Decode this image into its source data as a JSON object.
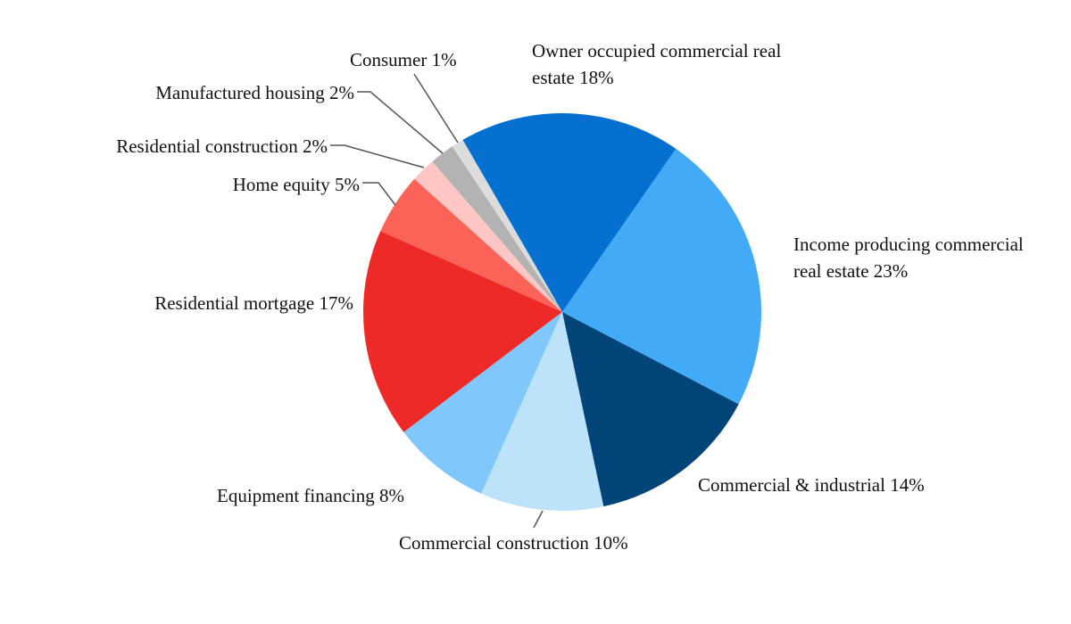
{
  "chart_data": {
    "type": "pie",
    "categories": [
      "Owner occupied commercial real estate",
      "Income producing commercial real estate",
      "Commercial & industrial",
      "Commercial construction",
      "Equipment financing",
      "Residential mortgage",
      "Home equity",
      "Residential construction",
      "Manufactured housing",
      "Consumer"
    ],
    "values": [
      18,
      23,
      14,
      10,
      8,
      17,
      5,
      2,
      2,
      1
    ],
    "value_labels": [
      "18%",
      "23%",
      "14%",
      "10%",
      "8%",
      "17%",
      "5%",
      "2%",
      "2%",
      "1%"
    ],
    "colors": [
      "#0570d0",
      "#42aaf7",
      "#004478",
      "#bde3fb",
      "#80c8fc",
      "#ee2a28",
      "#fb6258",
      "#ffc6c4",
      "#b3b3b3",
      "#dcdcdc"
    ]
  }
}
